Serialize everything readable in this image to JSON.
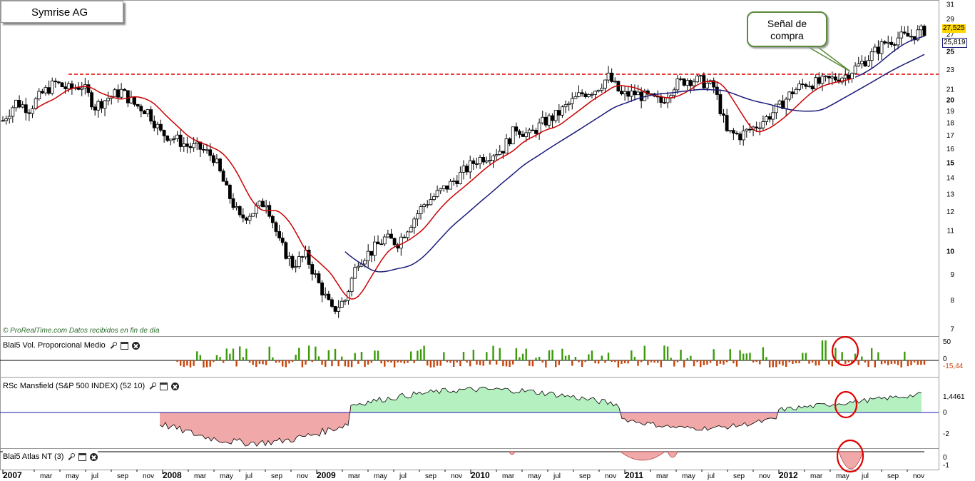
{
  "title": "Symrise AG",
  "callout": {
    "line1": "Señal de",
    "line2": "compra"
  },
  "copyright": "© ProRealTime.com  Datos recibidos en fin de día",
  "price_tags": {
    "last": "27,525",
    "ma": "25,819",
    "last_color": "#ffd700"
  },
  "panels": {
    "volume": {
      "label": "Blai5 Vol. Proporcional Medio",
      "value": "-15,44",
      "ticks": [
        "50",
        "0"
      ]
    },
    "rsc": {
      "label": "RSc Mansfield (S&P 500 INDEX) (52 10)",
      "value": "1,4461",
      "ticks": [
        "0",
        "-2"
      ]
    },
    "atlas": {
      "label": "Blai5 Atlas NT (3)",
      "ticks": [
        "0",
        "-1"
      ]
    }
  },
  "colors": {
    "ma_short": "#cc0000",
    "ma_long": "#1a1a7a",
    "resistance": "#dd0000",
    "volume_up": "#3a9a0a",
    "volume_down": "#c8440a",
    "rsc_positive": "#b4f0c0",
    "rsc_negative": "#f0a8a8",
    "highlight_circle": "#e00000"
  },
  "chart_data": {
    "type": "candlestick",
    "title": "Symrise AG",
    "y_scale": "log",
    "y_ticks": [
      7,
      8,
      9,
      10,
      11,
      12,
      13,
      14,
      15,
      16,
      17,
      18,
      19,
      20,
      21,
      23,
      25,
      27,
      29,
      31
    ],
    "x_labels": [
      "2007",
      "mar",
      "may",
      "jul",
      "sep",
      "nov",
      "2008",
      "mar",
      "may",
      "jul",
      "sep",
      "nov",
      "2009",
      "mar",
      "may",
      "jul",
      "sep",
      "nov",
      "2010",
      "mar",
      "may",
      "jul",
      "sep",
      "nov",
      "2011",
      "mar",
      "may",
      "jul",
      "sep",
      "nov",
      "2012",
      "mar",
      "may",
      "jul",
      "sep",
      "nov"
    ],
    "resistance_level": 22.5,
    "close_series": [
      [
        "2007-01",
        18.2
      ],
      [
        "2007-02",
        19.8
      ],
      [
        "2007-03",
        19.2
      ],
      [
        "2007-04",
        20.6
      ],
      [
        "2007-05",
        21.6
      ],
      [
        "2007-06",
        21.0
      ],
      [
        "2007-07",
        21.4
      ],
      [
        "2007-08",
        19.4
      ],
      [
        "2007-09",
        20.2
      ],
      [
        "2007-10",
        20.8
      ],
      [
        "2007-11",
        19.6
      ],
      [
        "2007-12",
        19.0
      ],
      [
        "2008-01",
        17.2
      ],
      [
        "2008-02",
        16.8
      ],
      [
        "2008-03",
        16.2
      ],
      [
        "2008-04",
        16.0
      ],
      [
        "2008-05",
        15.4
      ],
      [
        "2008-06",
        13.2
      ],
      [
        "2008-07",
        11.6
      ],
      [
        "2008-08",
        12.0
      ],
      [
        "2008-09",
        12.6
      ],
      [
        "2008-10",
        10.4
      ],
      [
        "2008-11",
        9.4
      ],
      [
        "2008-12",
        9.8
      ],
      [
        "2009-01",
        8.6
      ],
      [
        "2009-02",
        7.6
      ],
      [
        "2009-03",
        8.0
      ],
      [
        "2009-04",
        9.6
      ],
      [
        "2009-05",
        10.0
      ],
      [
        "2009-06",
        10.6
      ],
      [
        "2009-07",
        10.4
      ],
      [
        "2009-08",
        11.4
      ],
      [
        "2009-09",
        12.4
      ],
      [
        "2009-10",
        13.0
      ],
      [
        "2009-11",
        13.6
      ],
      [
        "2009-12",
        14.4
      ],
      [
        "2010-01",
        15.2
      ],
      [
        "2010-02",
        15.6
      ],
      [
        "2010-03",
        16.0
      ],
      [
        "2010-04",
        17.6
      ],
      [
        "2010-05",
        17.0
      ],
      [
        "2010-06",
        18.0
      ],
      [
        "2010-07",
        18.6
      ],
      [
        "2010-08",
        19.6
      ],
      [
        "2010-09",
        20.6
      ],
      [
        "2010-10",
        21.0
      ],
      [
        "2010-11",
        22.2
      ],
      [
        "2010-12",
        20.4
      ],
      [
        "2011-01",
        20.6
      ],
      [
        "2011-02",
        20.2
      ],
      [
        "2011-03",
        19.8
      ],
      [
        "2011-04",
        21.4
      ],
      [
        "2011-05",
        22.0
      ],
      [
        "2011-06",
        21.8
      ],
      [
        "2011-07",
        21.2
      ],
      [
        "2011-08",
        17.2
      ],
      [
        "2011-09",
        17.0
      ],
      [
        "2011-10",
        17.6
      ],
      [
        "2011-11",
        18.4
      ],
      [
        "2011-12",
        19.4
      ],
      [
        "2012-01",
        20.8
      ],
      [
        "2012-02",
        21.6
      ],
      [
        "2012-03",
        21.6
      ],
      [
        "2012-04",
        22.0
      ],
      [
        "2012-05",
        22.4
      ],
      [
        "2012-06",
        23.4
      ],
      [
        "2012-07",
        24.6
      ],
      [
        "2012-08",
        26.0
      ],
      [
        "2012-09",
        26.6
      ],
      [
        "2012-10",
        26.8
      ],
      [
        "2012-11",
        27.525
      ]
    ],
    "series": [
      {
        "name": "MA short (red)",
        "values_note": ""
      },
      {
        "name": "MA long (blue)",
        "last": 25.819
      }
    ]
  }
}
